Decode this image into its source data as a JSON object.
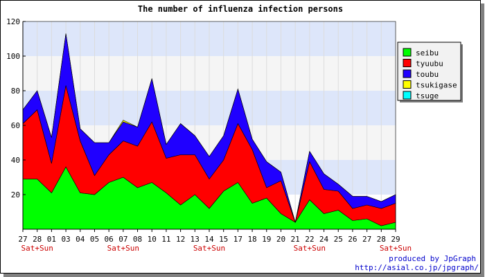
{
  "chart_data": {
    "type": "area",
    "stacked": true,
    "title": "The number of influenza infection persons",
    "xlabel": "",
    "ylabel": "",
    "ylim": [
      0,
      120
    ],
    "yticks": [
      20,
      40,
      60,
      80,
      100,
      120
    ],
    "grid": "horizontal bands",
    "legend_position": "right",
    "categories": [
      "27",
      "28",
      "01",
      "03",
      "04",
      "05",
      "06",
      "07",
      "08",
      "10",
      "11",
      "12",
      "13",
      "14",
      "15",
      "17",
      "18",
      "19",
      "20",
      "21",
      "22",
      "24",
      "25",
      "26",
      "27",
      "28",
      "29"
    ],
    "sublabels": [
      {
        "index": 1,
        "text": "Sat+Sun"
      },
      {
        "index": 7,
        "text": "Sat+Sun"
      },
      {
        "index": 13,
        "text": "Sat+Sun"
      },
      {
        "index": 20,
        "text": "Sat+Sun"
      },
      {
        "index": 26,
        "text": "Sat+Sun"
      }
    ],
    "series": [
      {
        "name": "seibu",
        "color": "#00ff00",
        "values": [
          29,
          29,
          21,
          36,
          21,
          20,
          27,
          30,
          24,
          27,
          21,
          14,
          20,
          12,
          22,
          27,
          15,
          18,
          9,
          4,
          17,
          9,
          11,
          5,
          6,
          2,
          4
        ]
      },
      {
        "name": "tyuubu",
        "color": "#ff0000",
        "values": [
          32,
          40,
          17,
          47,
          30,
          11,
          16,
          21,
          24,
          35,
          20,
          29,
          23,
          17,
          18,
          34,
          31,
          6,
          19,
          0,
          22,
          14,
          11,
          7,
          8,
          10,
          11
        ]
      },
      {
        "name": "toubu",
        "color": "#2000ff",
        "values": [
          8,
          11,
          15,
          30,
          7,
          19,
          7,
          11,
          11,
          25,
          8,
          18,
          11,
          13,
          14,
          20,
          6,
          15,
          5,
          0,
          6,
          9,
          4,
          7,
          5,
          4,
          5
        ]
      },
      {
        "name": "tsukigase",
        "color": "#ffff00",
        "values": [
          0,
          0,
          0,
          0,
          0,
          0,
          0,
          1,
          0,
          0,
          0,
          0,
          0,
          0,
          0,
          0,
          0,
          0,
          0,
          0,
          0,
          0,
          0,
          0,
          0,
          0,
          0
        ]
      },
      {
        "name": "tsuge",
        "color": "#00ffff",
        "values": [
          0,
          0,
          0,
          0,
          0,
          0,
          0,
          0,
          0,
          0,
          0,
          0,
          0,
          0,
          0,
          0,
          0,
          0,
          0,
          0,
          0,
          0,
          0,
          0,
          0,
          0,
          0
        ]
      }
    ]
  },
  "footer": {
    "credit": "produced by JpGraph",
    "url": "http://asial.co.jp/jpgraph/"
  }
}
